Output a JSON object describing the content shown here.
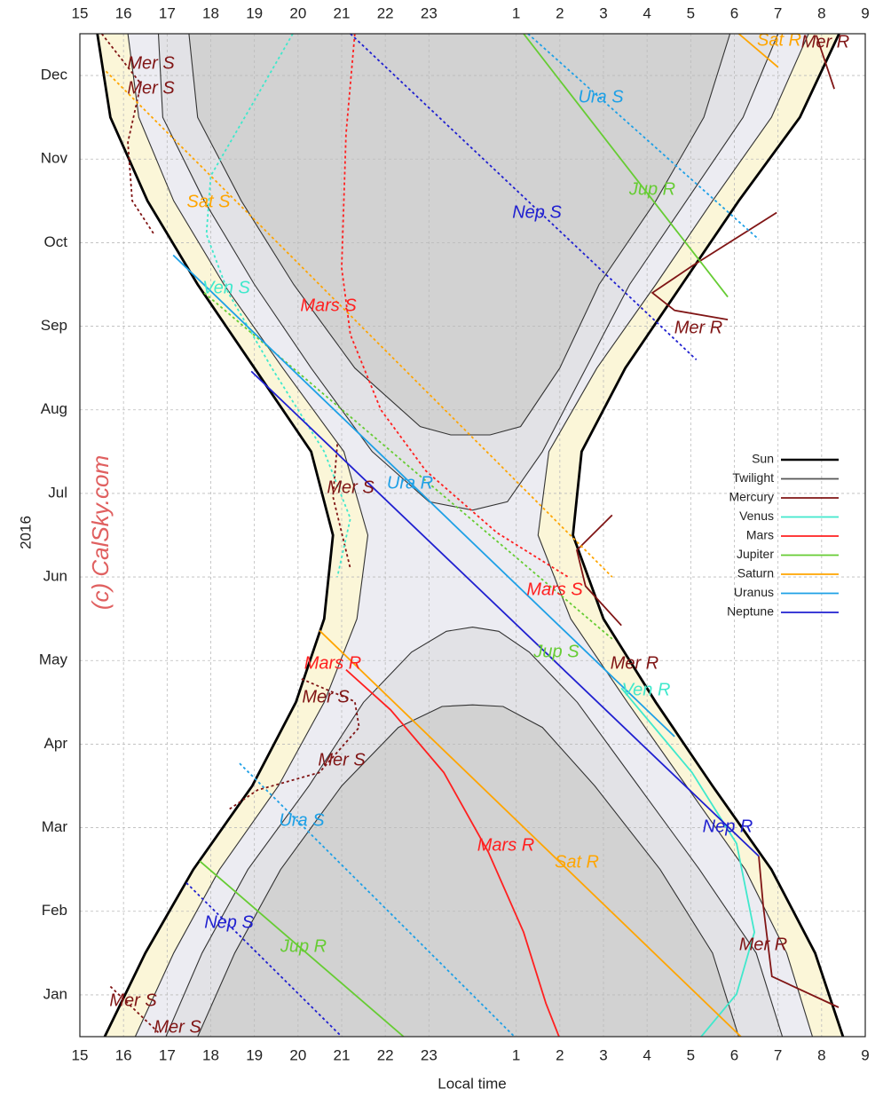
{
  "chart_data": {
    "type": "line",
    "xlabel": "Local time",
    "ylabel": "2016",
    "watermark": "(c) CalSky.com",
    "xlim": [
      15,
      33
    ],
    "ylim": [
      0,
      12
    ],
    "xticks": [
      15,
      16,
      17,
      18,
      19,
      20,
      21,
      22,
      23,
      {
        "value": 25,
        "label": "1"
      },
      {
        "value": 26,
        "label": "2"
      },
      {
        "value": 27,
        "label": "3"
      },
      {
        "value": 28,
        "label": "4"
      },
      {
        "value": 29,
        "label": "5"
      },
      {
        "value": 30,
        "label": "6"
      },
      {
        "value": 31,
        "label": "7"
      },
      {
        "value": 32,
        "label": "8"
      },
      {
        "value": 33,
        "label": "9"
      }
    ],
    "yticks": [
      {
        "value": 0.5,
        "label": "Jan"
      },
      {
        "value": 1.5,
        "label": "Feb"
      },
      {
        "value": 2.5,
        "label": "Mar"
      },
      {
        "value": 3.5,
        "label": "Apr"
      },
      {
        "value": 4.5,
        "label": "May"
      },
      {
        "value": 5.5,
        "label": "Jun"
      },
      {
        "value": 6.5,
        "label": "Jul"
      },
      {
        "value": 7.5,
        "label": "Aug"
      },
      {
        "value": 8.5,
        "label": "Sep"
      },
      {
        "value": 9.5,
        "label": "Oct"
      },
      {
        "value": 10.5,
        "label": "Nov"
      },
      {
        "value": 11.5,
        "label": "Dec"
      }
    ],
    "grid": true,
    "legend": {
      "position": "right",
      "entries": [
        {
          "name": "Sun",
          "color": "#000000"
        },
        {
          "name": "Twilight",
          "color": "#555555"
        },
        {
          "name": "Mercury",
          "color": "#801515"
        },
        {
          "name": "Venus",
          "color": "#40e8cc"
        },
        {
          "name": "Mars",
          "color": "#ff2020"
        },
        {
          "name": "Jupiter",
          "color": "#66cc33"
        },
        {
          "name": "Saturn",
          "color": "#ffa500"
        },
        {
          "name": "Uranus",
          "color": "#1ea0e6"
        },
        {
          "name": "Neptune",
          "color": "#2020d0"
        }
      ]
    },
    "series": [
      {
        "name": "Sun",
        "color": "#000000",
        "x": [
          15.57,
          16.5,
          17.6,
          18.95,
          19.95,
          20.6,
          20.8,
          20.3,
          19.0,
          17.7,
          16.55,
          15.7,
          15.4,
          null,
          32.49,
          31.85,
          30.85,
          29.5,
          28.2,
          27.0,
          26.3,
          26.5,
          27.5,
          28.8,
          30.1,
          31.5,
          32.4
        ],
        "values": [
          0,
          1,
          2,
          3,
          4,
          5,
          6,
          7,
          8,
          9,
          10,
          11,
          12,
          null,
          0,
          1,
          2,
          3,
          4,
          5,
          6,
          7,
          8,
          9,
          10,
          11,
          12
        ]
      },
      {
        "name": "Twilight",
        "color": "#333333",
        "x": [
          16.27,
          17.15,
          18.2,
          19.55,
          20.6,
          21.35,
          21.6,
          21.05,
          19.65,
          18.3,
          17.15,
          16.35,
          16.1,
          null,
          31.79,
          31.2,
          30.25,
          28.9,
          27.55,
          26.25,
          25.5,
          25.75,
          26.85,
          28.2,
          29.5,
          30.85,
          31.7,
          null,
          16.97,
          17.8,
          18.85,
          20.25,
          21.5,
          22.6,
          23.4,
          24,
          24.6,
          25.3,
          26.4,
          27.8,
          29.2,
          30.5,
          31.1,
          null,
          16.8,
          16.9,
          17.85,
          19.0,
          20.3,
          21.7,
          23.0,
          24,
          24.8,
          25.6,
          26.6,
          27.6,
          28.9,
          30.2,
          31.0,
          null,
          17.7,
          18.55,
          19.6,
          21.0,
          22.3,
          23.3,
          24,
          24.7,
          25.6,
          26.8,
          28.3,
          29.5,
          30.1,
          null,
          17.5,
          17.7,
          18.7,
          19.9,
          21.3,
          22.8,
          23.5,
          24.4,
          25.1,
          26.0,
          26.9,
          28.2,
          29.3,
          29.9
        ],
        "values": [
          0,
          1,
          2,
          3,
          4,
          5,
          6,
          7,
          8,
          9,
          10,
          11,
          12,
          null,
          0,
          1,
          2,
          3,
          4,
          5,
          6,
          7,
          8,
          9,
          10,
          11,
          12,
          null,
          0,
          1,
          2,
          3,
          4,
          4.6,
          4.85,
          4.9,
          4.85,
          4.6,
          4,
          3,
          2,
          1,
          0,
          null,
          12,
          11,
          10,
          9,
          8,
          7,
          6.4,
          6.3,
          6.4,
          7,
          8,
          9,
          10,
          11,
          12,
          null,
          0,
          1,
          2,
          3,
          3.7,
          3.95,
          3.97,
          3.95,
          3.7,
          3,
          2,
          1,
          0,
          null,
          12,
          11,
          10,
          9,
          8,
          7.3,
          7.2,
          7.2,
          7.3,
          8,
          9,
          10,
          11,
          12
        ]
      },
      {
        "name": "Mer S",
        "color": "#801515",
        "dashed": true,
        "x": [
          15.5,
          16.4,
          16.1,
          16.2,
          16.7
        ],
        "values": [
          12,
          11.4,
          10.7,
          10.0,
          9.6
        ]
      },
      {
        "name": "Mer R",
        "color": "#801515",
        "x": [
          31.88,
          32.29
        ],
        "values": [
          11.98,
          11.34
        ]
      },
      {
        "name": "Mer R",
        "color": "#801515",
        "x": [
          30.97,
          29.03,
          28.12,
          28.63,
          29.85
        ],
        "values": [
          9.86,
          9.22,
          8.9,
          8.69,
          8.58
        ]
      },
      {
        "name": "Mer S",
        "color": "#801515",
        "dashed": true,
        "x": [
          20.9,
          20.8,
          21.2
        ],
        "values": [
          7.09,
          6.46,
          5.6
        ]
      },
      {
        "name": "Mer R",
        "color": "#801515",
        "x": [
          27.2,
          26.39,
          26.59,
          27.41
        ],
        "values": [
          6.24,
          5.82,
          5.39,
          4.92
        ]
      },
      {
        "name": "Mer S",
        "color": "#801515",
        "dashed": true,
        "x": [
          20.08,
          21.3,
          21.4,
          20.49,
          19.07,
          18.42
        ],
        "values": [
          4.28,
          4.01,
          3.7,
          3.16,
          2.95,
          2.72
        ]
      },
      {
        "name": "Mer R",
        "color": "#801515",
        "x": [
          30.56,
          30.66,
          30.86,
          32.39
        ],
        "values": [
          2.16,
          1.57,
          0.72,
          0.35
        ]
      },
      {
        "name": "Mer S",
        "color": "#801515",
        "dashed": true,
        "x": [
          15.7,
          16.8
        ],
        "values": [
          0.6,
          0.05
        ]
      },
      {
        "name": "Ven S",
        "color": "#40e8cc",
        "dashed": true,
        "x": [
          19.88,
          19.0,
          18.0,
          17.9,
          18.4,
          19.4,
          20.6,
          21.2,
          20.9
        ],
        "values": [
          12,
          11.2,
          10.3,
          9.6,
          8.9,
          8.0,
          7.0,
          6.2,
          5.5
        ]
      },
      {
        "name": "Ven R",
        "color": "#40e8cc",
        "x": [
          27.41,
          29.03,
          30.05,
          30.46,
          30.05,
          29.24
        ],
        "values": [
          4.17,
          3.16,
          2.31,
          1.25,
          0.51,
          0
        ]
      },
      {
        "name": "Mars S",
        "color": "#ff2020",
        "dashed": true,
        "x": [
          21.3,
          21.1,
          21.0,
          21.2,
          21.9,
          22.93,
          24.56,
          26.19
        ],
        "values": [
          12,
          10.8,
          9.2,
          8.4,
          7.5,
          6.77,
          6.03,
          5.5
        ]
      },
      {
        "name": "Mars R",
        "color": "#ff2020",
        "x": [
          21.1,
          22.12,
          23.34,
          24.36,
          25.17,
          25.68,
          25.98
        ],
        "values": [
          4.39,
          3.91,
          3.16,
          2.21,
          1.25,
          0.4,
          0
        ]
      },
      {
        "name": "Jup S",
        "color": "#66cc33",
        "dashed": true,
        "x": [
          17.85,
          27.2
        ],
        "values": [
          8.9,
          4.76
        ]
      },
      {
        "name": "Jup R",
        "color": "#66cc33",
        "x": [
          25.17,
          29.85
        ],
        "values": [
          12,
          8.85
        ]
      },
      {
        "name": "Jup R",
        "color": "#66cc33",
        "x": [
          17.75,
          22.42
        ],
        "values": [
          2.1,
          0
        ]
      },
      {
        "name": "Sat S",
        "color": "#ffa500",
        "dashed": true,
        "x": [
          15.6,
          27.2
        ],
        "values": [
          11.55,
          5.5
        ]
      },
      {
        "name": "Sat R",
        "color": "#ffa500",
        "x": [
          30.1,
          31.0
        ],
        "values": [
          12,
          11.6
        ]
      },
      {
        "name": "Sat R",
        "color": "#ffa500",
        "x": [
          20.49,
          30.15
        ],
        "values": [
          4.86,
          0
        ]
      },
      {
        "name": "Ura S",
        "color": "#1ea0e6",
        "dashed": true,
        "x": [
          25.27,
          30.56
        ],
        "values": [
          12,
          9.54
        ]
      },
      {
        "name": "Ura S",
        "color": "#1ea0e6",
        "dashed": true,
        "x": [
          18.66,
          24.96
        ],
        "values": [
          3.27,
          0
        ]
      },
      {
        "name": "Ura R",
        "color": "#1ea0e6",
        "x": [
          17.14,
          28.63
        ],
        "values": [
          9.35,
          3.59
        ]
      },
      {
        "name": "Nep S",
        "color": "#2020d0",
        "dashed": true,
        "x": [
          21.2,
          29.13
        ],
        "values": [
          12,
          8.1
        ]
      },
      {
        "name": "Nep S",
        "color": "#2020d0",
        "dashed": true,
        "x": [
          17.44,
          21.0
        ],
        "values": [
          1.84,
          0
        ]
      },
      {
        "name": "Nep R",
        "color": "#2020d0",
        "x": [
          18.93,
          30.56
        ],
        "values": [
          7.96,
          2.16
        ]
      }
    ]
  }
}
